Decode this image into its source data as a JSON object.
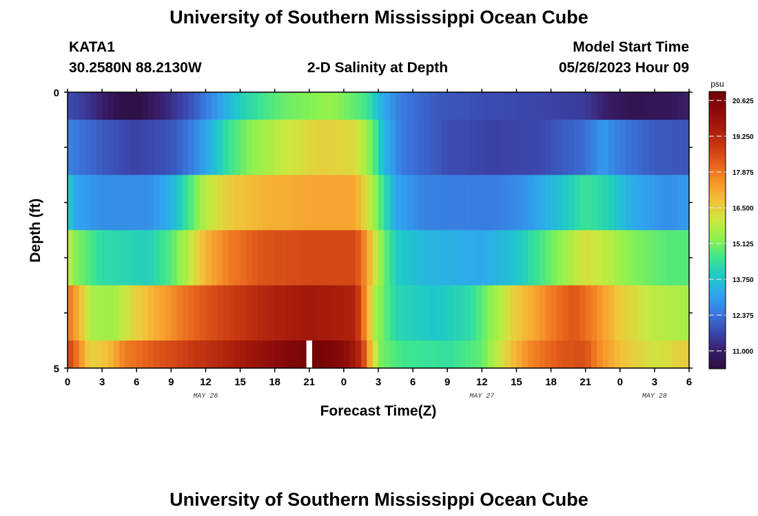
{
  "header": {
    "title": "University of Southern Mississippi Ocean Cube",
    "station": "KATA1",
    "location": "30.2580N  88.2130W",
    "subtitle": "2-D Salinity at Depth",
    "model_label": "Model Start Time",
    "model_time": "05/26/2023 Hour 09"
  },
  "footer": {
    "title": "University of Southern Mississippi Ocean Cube"
  },
  "chart_data": {
    "type": "heatmap",
    "title": "2-D Salinity at Depth",
    "xlabel": "Forecast Time(Z)",
    "ylabel": "Depth (ft)",
    "x_hours": [
      0,
      54
    ],
    "x_tick_labels": [
      "0",
      "3",
      "6",
      "9",
      "12",
      "15",
      "18",
      "21",
      "0",
      "3",
      "6",
      "9",
      "12",
      "15",
      "18",
      "21",
      "0",
      "3",
      "6"
    ],
    "date_labels": [
      {
        "text": "MAY 26",
        "hour": 12
      },
      {
        "text": "MAY 27",
        "hour": 36
      },
      {
        "text": "MAY 28",
        "hour": 51
      }
    ],
    "y_tick_labels": [
      "0",
      "5"
    ],
    "ylim": [
      0,
      5
    ],
    "y_reversed": true,
    "colorbar": {
      "unit": "psu",
      "min": 10.3125,
      "max": 20.9688,
      "ticks": [
        "20.625",
        "19.250",
        "17.875",
        "16.500",
        "15.125",
        "13.750",
        "12.375",
        "11.000"
      ]
    },
    "rows": [
      {
        "depth_range": [
          0,
          0.5
        ],
        "keys": [
          [
            0,
            11.8
          ],
          [
            1.5,
            11.5
          ],
          [
            4.5,
            10.5
          ],
          [
            6,
            10.4
          ],
          [
            9,
            11.3
          ],
          [
            11,
            12.0
          ],
          [
            13,
            13.0
          ],
          [
            15,
            14.0
          ],
          [
            17,
            14.6
          ],
          [
            19,
            15.0
          ],
          [
            21,
            15.2
          ],
          [
            23,
            15.4
          ],
          [
            26,
            14.6
          ],
          [
            27.5,
            13.2
          ],
          [
            29,
            12.5
          ],
          [
            32,
            12.0
          ],
          [
            36,
            11.8
          ],
          [
            40,
            11.7
          ],
          [
            45,
            11.5
          ],
          [
            47,
            10.9
          ],
          [
            49,
            10.6
          ],
          [
            52,
            10.7
          ],
          [
            54,
            11.0
          ]
        ]
      },
      {
        "depth_range": [
          0.5,
          1.5
        ],
        "keys": [
          [
            0,
            12.6
          ],
          [
            3,
            12.0
          ],
          [
            6,
            11.6
          ],
          [
            9,
            11.9
          ],
          [
            11,
            12.6
          ],
          [
            12.5,
            13.5
          ],
          [
            14,
            14.5
          ],
          [
            16,
            15.3
          ],
          [
            19,
            16.0
          ],
          [
            22,
            16.5
          ],
          [
            25,
            16.3
          ],
          [
            26.5,
            15.0
          ],
          [
            27.5,
            13.5
          ],
          [
            29,
            12.5
          ],
          [
            33,
            11.8
          ],
          [
            37,
            11.6
          ],
          [
            41,
            11.7
          ],
          [
            45,
            12.3
          ],
          [
            46.5,
            13.0
          ],
          [
            48,
            12.5
          ],
          [
            51,
            12.0
          ],
          [
            54,
            11.9
          ]
        ]
      },
      {
        "depth_range": [
          1.5,
          2.5
        ],
        "keys": [
          [
            0,
            14.8
          ],
          [
            0.4,
            13.2
          ],
          [
            3,
            12.8
          ],
          [
            7,
            12.8
          ],
          [
            9,
            13.4
          ],
          [
            10.5,
            14.6
          ],
          [
            12,
            15.8
          ],
          [
            14,
            16.6
          ],
          [
            17,
            17.0
          ],
          [
            21,
            17.2
          ],
          [
            25,
            17.2
          ],
          [
            26,
            16.2
          ],
          [
            27,
            15.0
          ],
          [
            28.5,
            13.2
          ],
          [
            31,
            12.6
          ],
          [
            37,
            12.5
          ],
          [
            40,
            12.9
          ],
          [
            43,
            13.8
          ],
          [
            45,
            14.5
          ],
          [
            47,
            14.1
          ],
          [
            49,
            13.3
          ],
          [
            52,
            12.8
          ],
          [
            54,
            13.0
          ]
        ]
      },
      {
        "depth_range": [
          2.5,
          3.5
        ],
        "keys": [
          [
            0,
            16.2
          ],
          [
            0.5,
            15.3
          ],
          [
            3,
            14.3
          ],
          [
            7,
            14.0
          ],
          [
            9,
            14.8
          ],
          [
            10.5,
            15.8
          ],
          [
            12,
            17.0
          ],
          [
            14,
            17.8
          ],
          [
            17,
            18.4
          ],
          [
            21,
            18.6
          ],
          [
            25,
            18.6
          ],
          [
            26,
            17.4
          ],
          [
            27,
            15.6
          ],
          [
            28.5,
            14.0
          ],
          [
            31,
            13.5
          ],
          [
            36,
            13.2
          ],
          [
            39,
            13.8
          ],
          [
            42,
            15.0
          ],
          [
            44,
            15.8
          ],
          [
            45,
            16.2
          ],
          [
            47,
            15.8
          ],
          [
            49,
            15.2
          ],
          [
            52,
            14.8
          ],
          [
            54,
            14.8
          ]
        ]
      },
      {
        "depth_range": [
          3.5,
          4.5
        ],
        "keys": [
          [
            0,
            18.0
          ],
          [
            1,
            17.0
          ],
          [
            2,
            15.6
          ],
          [
            4,
            15.5
          ],
          [
            6,
            16.5
          ],
          [
            8,
            17.2
          ],
          [
            10,
            17.9
          ],
          [
            13,
            18.6
          ],
          [
            17,
            19.3
          ],
          [
            21,
            19.7
          ],
          [
            25,
            19.4
          ],
          [
            26,
            17.3
          ],
          [
            26.7,
            15.6
          ],
          [
            28.5,
            14.2
          ],
          [
            32,
            13.8
          ],
          [
            35,
            14.3
          ],
          [
            37,
            15.4
          ],
          [
            39,
            16.6
          ],
          [
            42,
            17.8
          ],
          [
            44,
            18.4
          ],
          [
            46,
            17.6
          ],
          [
            48,
            16.6
          ],
          [
            51,
            15.8
          ],
          [
            54,
            15.6
          ]
        ]
      },
      {
        "depth_range": [
          4.5,
          5
        ],
        "keys": [
          [
            0,
            18.8
          ],
          [
            1,
            17.7
          ],
          [
            2,
            16.4
          ],
          [
            3.5,
            16.8
          ],
          [
            5,
            17.8
          ],
          [
            8,
            18.4
          ],
          [
            11,
            18.9
          ],
          [
            14,
            19.4
          ],
          [
            17,
            20.0
          ],
          [
            20,
            20.6
          ],
          [
            21.5,
            20.9
          ],
          [
            24,
            20.3
          ],
          [
            25.5,
            19.2
          ],
          [
            26.4,
            16.7
          ],
          [
            27.2,
            15.1
          ],
          [
            29,
            14.6
          ],
          [
            33,
            14.4
          ],
          [
            36,
            14.9
          ],
          [
            38,
            16.4
          ],
          [
            40,
            17.6
          ],
          [
            43,
            18.4
          ],
          [
            45,
            18.5
          ],
          [
            46,
            17.7
          ],
          [
            48,
            16.8
          ],
          [
            51,
            16.1
          ],
          [
            54,
            16.6
          ]
        ]
      }
    ],
    "missing": [
      {
        "hour_range": [
          20.75,
          21.25
        ],
        "depth_range": [
          4.5,
          5
        ]
      }
    ]
  },
  "colors": {
    "colormap": [
      "#2a0e3f",
      "#3a1f6d",
      "#3b49b0",
      "#3a78dd",
      "#30a5f0",
      "#1ec9c9",
      "#3de58f",
      "#8cf24e",
      "#c9e840",
      "#f1c53a",
      "#f8992c",
      "#e8641c",
      "#c93a12",
      "#a81c0c",
      "#8a0a0a",
      "#6e0404"
    ]
  }
}
